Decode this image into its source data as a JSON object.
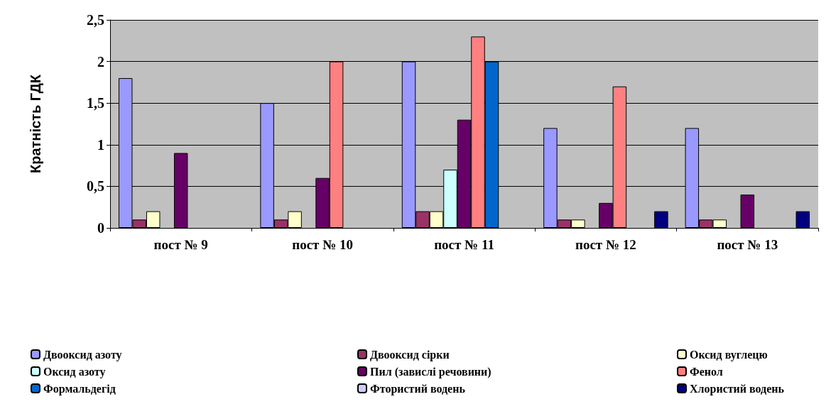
{
  "chart_data": {
    "type": "bar",
    "ylabel": "Кратність ГДК",
    "categories": [
      "пост № 9",
      "пост № 10",
      "пост № 11",
      "пост № 12",
      "пост № 13"
    ],
    "series": [
      {
        "name": "Двооксид азоту",
        "color": "#9999ff",
        "values": [
          1.8,
          1.5,
          2.0,
          1.2,
          1.2
        ]
      },
      {
        "name": "Двооксид сірки",
        "color": "#993366",
        "values": [
          0.1,
          0.1,
          0.2,
          0.1,
          0.1
        ]
      },
      {
        "name": "Оксид вуглецю",
        "color": "#ffffcc",
        "values": [
          0.2,
          0.2,
          0.2,
          0.1,
          0.1
        ]
      },
      {
        "name": "Оксид азоту",
        "color": "#ccffff",
        "values": [
          null,
          null,
          0.7,
          null,
          null
        ]
      },
      {
        "name": "Пил (завислі речовини)",
        "color": "#660066",
        "values": [
          0.9,
          0.6,
          1.3,
          0.3,
          0.4
        ]
      },
      {
        "name": "Фенол",
        "color": "#ff8080",
        "values": [
          null,
          2.0,
          2.3,
          1.7,
          null
        ]
      },
      {
        "name": "Формальдегід",
        "color": "#0066cc",
        "values": [
          null,
          null,
          2.0,
          null,
          null
        ]
      },
      {
        "name": "Фтористий водень",
        "color": "#ccccff",
        "values": [
          null,
          null,
          null,
          null,
          null
        ]
      },
      {
        "name": "Хлористий водень",
        "color": "#000080",
        "values": [
          null,
          null,
          null,
          0.2,
          0.2
        ]
      }
    ],
    "ylim": [
      0,
      2.5
    ],
    "yticks": [
      {
        "value": 0,
        "label": "0"
      },
      {
        "value": 0.5,
        "label": "0,5"
      },
      {
        "value": 1,
        "label": "1"
      },
      {
        "value": 1.5,
        "label": "1,5"
      },
      {
        "value": 2,
        "label": "2"
      },
      {
        "value": 2.5,
        "label": "2,5"
      }
    ],
    "grid": "y",
    "legend": "bottom"
  }
}
